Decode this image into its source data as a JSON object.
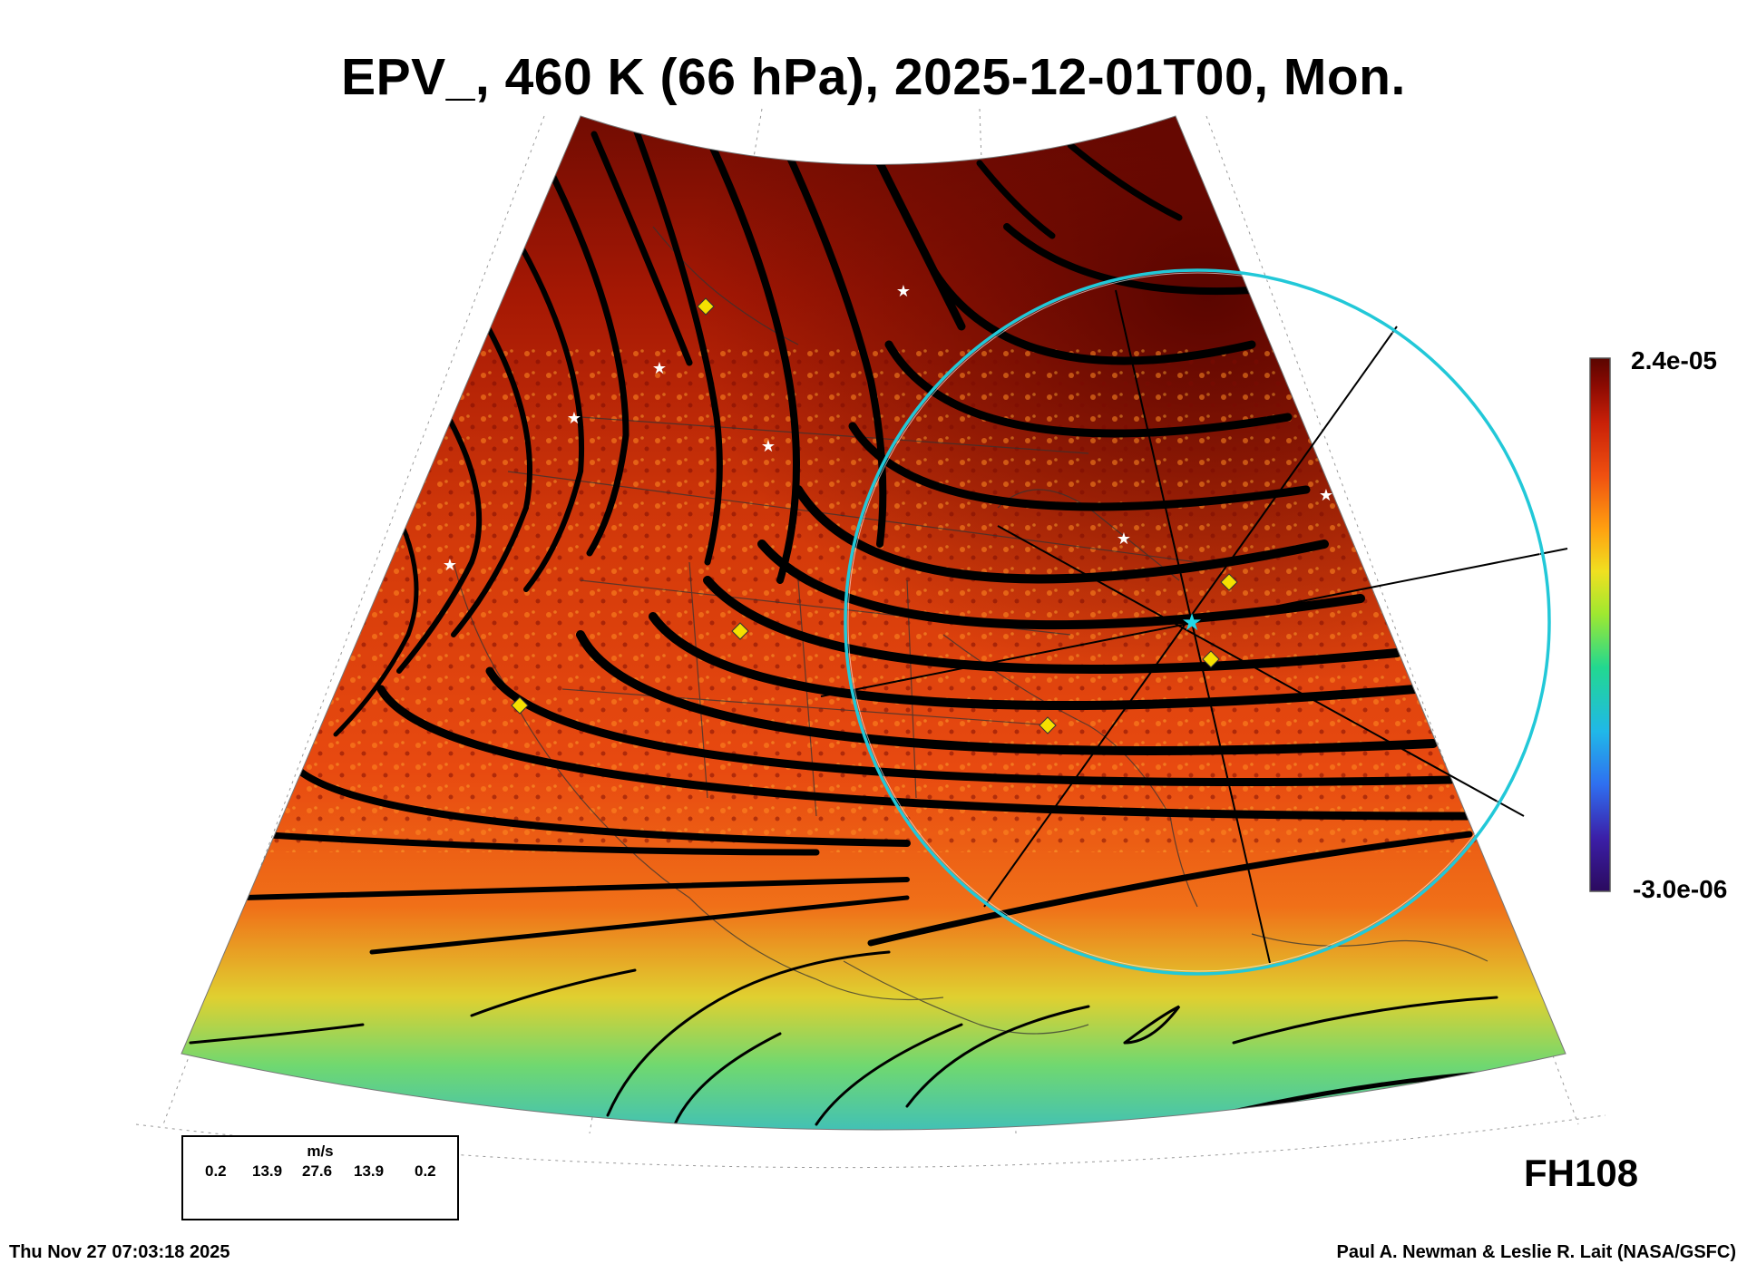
{
  "title": "EPV_, 460 K (66 hPa), 2025-12-01T00, Mon.",
  "colorbar": {
    "max_label": "2.4e-05",
    "min_label": "-3.0e-06",
    "colors": [
      "#2b0a5e",
      "#3b1fa8",
      "#2f6ff0",
      "#20b8e8",
      "#22d890",
      "#9fe830",
      "#f0e020",
      "#ffa010",
      "#f05010",
      "#c82008",
      "#8a0a02",
      "#5a0500"
    ]
  },
  "wind_legend": {
    "unit": "m/s",
    "values": [
      "0.2",
      "13.9",
      "27.6",
      "13.9",
      "0.2"
    ]
  },
  "forecast_hour": "FH108",
  "timestamp": "Thu Nov 27 07:03:18 2025",
  "credit": "Paul A. Newman & Leslie R. Lait (NASA/GSFC)",
  "colors": {
    "ring": "#22c8d8",
    "marker_diamond": "#f5e000",
    "marker_star": "#ffffff",
    "center_star": "#22d8e8"
  }
}
